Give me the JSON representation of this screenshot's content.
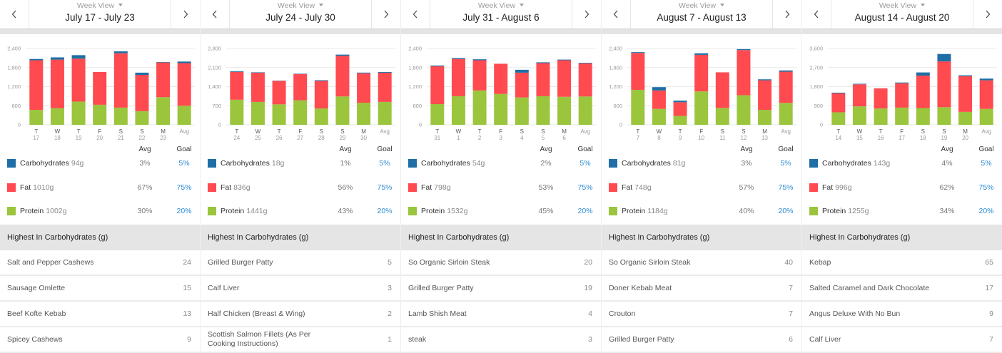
{
  "colors": {
    "carbohydrates": "#1f6ea6",
    "fat": "#ff4a50",
    "protein": "#9bc53d",
    "goal_text": "#2a8ad4"
  },
  "panels": [
    {
      "header": {
        "view_label": "Week View",
        "date_range": "July 17 - July 23",
        "prev_icon": "chevron-left",
        "next_icon": "chevron-right"
      },
      "legend": {
        "avg_header": "Avg",
        "goal_header": "Goal",
        "rows": [
          {
            "key": "carbohydrates",
            "name": "Carbohydrates",
            "amount": "94g",
            "avg": "3%",
            "goal": "5%"
          },
          {
            "key": "fat",
            "name": "Fat",
            "amount": "1010g",
            "avg": "67%",
            "goal": "75%"
          },
          {
            "key": "protein",
            "name": "Protein",
            "amount": "1002g",
            "avg": "30%",
            "goal": "20%"
          }
        ]
      },
      "top_foods": {
        "title": "Highest In Carbohydrates (g)",
        "items": [
          {
            "name": "Salt and Pepper Cashews",
            "value": "24"
          },
          {
            "name": "Sausage Omlette",
            "value": "15"
          },
          {
            "name": "Beef Kofte Kebab",
            "value": "13"
          },
          {
            "name": "Spicey Cashews",
            "value": "9"
          }
        ]
      }
    },
    {
      "header": {
        "view_label": "Week View",
        "date_range": "July 24 - July 30",
        "prev_icon": "chevron-left",
        "next_icon": "chevron-right"
      },
      "legend": {
        "avg_header": "Avg",
        "goal_header": "Goal",
        "rows": [
          {
            "key": "carbohydrates",
            "name": "Carbohydrates",
            "amount": "18g",
            "avg": "1%",
            "goal": "5%"
          },
          {
            "key": "fat",
            "name": "Fat",
            "amount": "836g",
            "avg": "56%",
            "goal": "75%"
          },
          {
            "key": "protein",
            "name": "Protein",
            "amount": "1441g",
            "avg": "43%",
            "goal": "20%"
          }
        ]
      },
      "top_foods": {
        "title": "Highest In Carbohydrates (g)",
        "items": [
          {
            "name": "Grilled Burger Patty",
            "value": "5"
          },
          {
            "name": "Calf Liver",
            "value": "3"
          },
          {
            "name": "Half Chicken (Breast & Wing)",
            "value": "2"
          },
          {
            "name": "Scottish Salmon Fillets (As Per Cooking Instructions)",
            "value": "1"
          }
        ]
      }
    },
    {
      "header": {
        "view_label": "Week View",
        "date_range": "July 31 - August 6",
        "prev_icon": "chevron-left",
        "next_icon": "chevron-right"
      },
      "legend": {
        "avg_header": "Avg",
        "goal_header": "Goal",
        "rows": [
          {
            "key": "carbohydrates",
            "name": "Carbohydrates",
            "amount": "54g",
            "avg": "2%",
            "goal": "5%"
          },
          {
            "key": "fat",
            "name": "Fat",
            "amount": "798g",
            "avg": "53%",
            "goal": "75%"
          },
          {
            "key": "protein",
            "name": "Protein",
            "amount": "1532g",
            "avg": "45%",
            "goal": "20%"
          }
        ]
      },
      "top_foods": {
        "title": "Highest In Carbohydrates (g)",
        "items": [
          {
            "name": "So Organic Sirloin Steak",
            "value": "20"
          },
          {
            "name": "Grilled Burger Patty",
            "value": "19"
          },
          {
            "name": "Lamb Shish Meat",
            "value": "4"
          },
          {
            "name": "steak",
            "value": "3"
          }
        ]
      }
    },
    {
      "header": {
        "view_label": "Week View",
        "date_range": "August 7 - August 13",
        "prev_icon": "chevron-left",
        "next_icon": "chevron-right"
      },
      "legend": {
        "avg_header": "Avg",
        "goal_header": "Goal",
        "rows": [
          {
            "key": "carbohydrates",
            "name": "Carbohydrates",
            "amount": "81g",
            "avg": "3%",
            "goal": "5%"
          },
          {
            "key": "fat",
            "name": "Fat",
            "amount": "748g",
            "avg": "57%",
            "goal": "75%"
          },
          {
            "key": "protein",
            "name": "Protein",
            "amount": "1184g",
            "avg": "40%",
            "goal": "20%"
          }
        ]
      },
      "top_foods": {
        "title": "Highest In Carbohydrates (g)",
        "items": [
          {
            "name": "So Organic Sirloin Steak",
            "value": "40"
          },
          {
            "name": "Doner Kebab Meat",
            "value": "7"
          },
          {
            "name": "Crouton",
            "value": "7"
          },
          {
            "name": "Grilled Burger Patty",
            "value": "6"
          }
        ]
      }
    },
    {
      "header": {
        "view_label": "Week View",
        "date_range": "August 14 - August 20",
        "prev_icon": "chevron-left",
        "next_icon": "chevron-right"
      },
      "legend": {
        "avg_header": "Avg",
        "goal_header": "Goal",
        "rows": [
          {
            "key": "carbohydrates",
            "name": "Carbohydrates",
            "amount": "143g",
            "avg": "4%",
            "goal": "5%"
          },
          {
            "key": "fat",
            "name": "Fat",
            "amount": "996g",
            "avg": "62%",
            "goal": "75%"
          },
          {
            "key": "protein",
            "name": "Protein",
            "amount": "1255g",
            "avg": "34%",
            "goal": "20%"
          }
        ]
      },
      "top_foods": {
        "title": "Highest In Carbohydrates (g)",
        "items": [
          {
            "name": "Kebap",
            "value": "65"
          },
          {
            "name": "Salted Caramel and Dark Chocolate",
            "value": "17"
          },
          {
            "name": "Angus Deluxe With No Bun",
            "value": "9"
          },
          {
            "name": "Calf Liver",
            "value": "7"
          }
        ]
      }
    }
  ],
  "chart_data": [
    {
      "type": "bar",
      "stacked": true,
      "title": "",
      "xlabel": "",
      "ylabel": "",
      "grid": true,
      "legend": "below",
      "categories": [
        "T 17",
        "W 18",
        "T 19",
        "F 20",
        "S 21",
        "S 22",
        "M 23",
        "Avg"
      ],
      "tick_days": [
        "T",
        "W",
        "T",
        "F",
        "S",
        "S",
        "M",
        "Avg"
      ],
      "tick_dates": [
        "17",
        "18",
        "19",
        "20",
        "21",
        "22",
        "23",
        ""
      ],
      "ylim": [
        0,
        2400
      ],
      "yticks": [
        0,
        600,
        1200,
        1800,
        2400
      ],
      "ytick_labels": [
        "0",
        "600",
        "1,200",
        "1,800",
        "2,400"
      ],
      "series": [
        {
          "name": "Protein",
          "key": "protein",
          "values": [
            470,
            520,
            730,
            630,
            540,
            430,
            870,
            600
          ]
        },
        {
          "name": "Fat",
          "key": "fat",
          "values": [
            1560,
            1530,
            1350,
            1030,
            1710,
            1140,
            1090,
            1340
          ]
        },
        {
          "name": "Carbohydrates",
          "key": "carbohydrates",
          "values": [
            40,
            70,
            110,
            0,
            60,
            70,
            15,
            50
          ]
        }
      ]
    },
    {
      "type": "bar",
      "stacked": true,
      "title": "",
      "xlabel": "",
      "ylabel": "",
      "grid": true,
      "legend": "below",
      "categories": [
        "T 24",
        "W 25",
        "T 26",
        "F 27",
        "S 28",
        "S 29",
        "M 30",
        "Avg"
      ],
      "tick_days": [
        "T",
        "W",
        "T",
        "F",
        "S",
        "S",
        "M",
        "Avg"
      ],
      "tick_dates": [
        "24",
        "25",
        "26",
        "27",
        "28",
        "29",
        "30",
        ""
      ],
      "ylim": [
        0,
        2800
      ],
      "yticks": [
        0,
        700,
        1400,
        2100,
        2800
      ],
      "ytick_labels": [
        "0",
        "700",
        "1,400",
        "2,100",
        "2,800"
      ],
      "series": [
        {
          "name": "Protein",
          "key": "protein",
          "values": [
            920,
            840,
            750,
            900,
            600,
            1040,
            810,
            840
          ]
        },
        {
          "name": "Fat",
          "key": "fat",
          "values": [
            1020,
            1070,
            860,
            960,
            1010,
            1490,
            1080,
            1070
          ]
        },
        {
          "name": "Carbohydrates",
          "key": "carbohydrates",
          "values": [
            25,
            15,
            10,
            15,
            25,
            45,
            25,
            25
          ]
        }
      ]
    },
    {
      "type": "bar",
      "stacked": true,
      "title": "",
      "xlabel": "",
      "ylabel": "",
      "grid": true,
      "legend": "below",
      "categories": [
        "T 31",
        "W 1",
        "T 2",
        "F 3",
        "S 4",
        "S 5",
        "M 6",
        "Avg"
      ],
      "tick_days": [
        "T",
        "W",
        "T",
        "F",
        "S",
        "S",
        "M",
        "Avg"
      ],
      "tick_dates": [
        "31",
        "1",
        "2",
        "3",
        "4",
        "5",
        "6",
        ""
      ],
      "ylim": [
        0,
        2400
      ],
      "yticks": [
        0,
        600,
        1200,
        1800,
        2400
      ],
      "ytick_labels": [
        "0",
        "600",
        "1,200",
        "1,800",
        "2,400"
      ],
      "series": [
        {
          "name": "Protein",
          "key": "protein",
          "values": [
            650,
            900,
            1080,
            970,
            860,
            900,
            880,
            890
          ]
        },
        {
          "name": "Fat",
          "key": "fat",
          "values": [
            1190,
            1170,
            950,
            950,
            780,
            1040,
            1150,
            1040
          ]
        },
        {
          "name": "Carbohydrates",
          "key": "carbohydrates",
          "values": [
            25,
            30,
            30,
            0,
            90,
            25,
            20,
            20
          ]
        }
      ]
    },
    {
      "type": "bar",
      "stacked": true,
      "title": "",
      "xlabel": "",
      "ylabel": "",
      "grid": true,
      "legend": "below",
      "categories": [
        "T 7",
        "W 8",
        "T 9",
        "F 10",
        "S 11",
        "S 12",
        "M 13",
        "Avg"
      ],
      "tick_days": [
        "T",
        "W",
        "T",
        "F",
        "S",
        "S",
        "M",
        "Avg"
      ],
      "tick_dates": [
        "7",
        "8",
        "9",
        "10",
        "11",
        "12",
        "13",
        ""
      ],
      "ylim": [
        0,
        2400
      ],
      "yticks": [
        0,
        600,
        1200,
        1800,
        2400
      ],
      "ytick_labels": [
        "0",
        "600",
        "1,200",
        "1,800",
        "2,400"
      ],
      "series": [
        {
          "name": "Protein",
          "key": "protein",
          "values": [
            1100,
            500,
            280,
            1050,
            530,
            930,
            470,
            690
          ]
        },
        {
          "name": "Fat",
          "key": "fat",
          "values": [
            1160,
            580,
            430,
            1150,
            1120,
            1420,
            930,
            980
          ]
        },
        {
          "name": "Carbohydrates",
          "key": "carbohydrates",
          "values": [
            25,
            105,
            50,
            50,
            0,
            30,
            30,
            40
          ]
        }
      ]
    },
    {
      "type": "bar",
      "stacked": true,
      "title": "",
      "xlabel": "",
      "ylabel": "",
      "grid": true,
      "legend": "below",
      "categories": [
        "T 14",
        "W 15",
        "T 16",
        "F 17",
        "S 18",
        "S 19",
        "M 20",
        "Avg"
      ],
      "tick_days": [
        "T",
        "W",
        "T",
        "F",
        "S",
        "S",
        "M",
        "Avg"
      ],
      "tick_dates": [
        "14",
        "15",
        "16",
        "17",
        "18",
        "19",
        "20",
        ""
      ],
      "ylim": [
        0,
        3600
      ],
      "yticks": [
        0,
        900,
        1800,
        2700,
        3600
      ],
      "ytick_labels": [
        "0",
        "900",
        "1,800",
        "2,700",
        "3,600"
      ],
      "series": [
        {
          "name": "Protein",
          "key": "protein",
          "values": [
            590,
            870,
            770,
            810,
            790,
            830,
            610,
            750
          ]
        },
        {
          "name": "Fat",
          "key": "fat",
          "values": [
            890,
            1040,
            950,
            1150,
            1530,
            2160,
            1680,
            1350
          ]
        },
        {
          "name": "Carbohydrates",
          "key": "carbohydrates",
          "values": [
            35,
            25,
            0,
            35,
            150,
            350,
            45,
            80
          ]
        }
      ]
    }
  ]
}
